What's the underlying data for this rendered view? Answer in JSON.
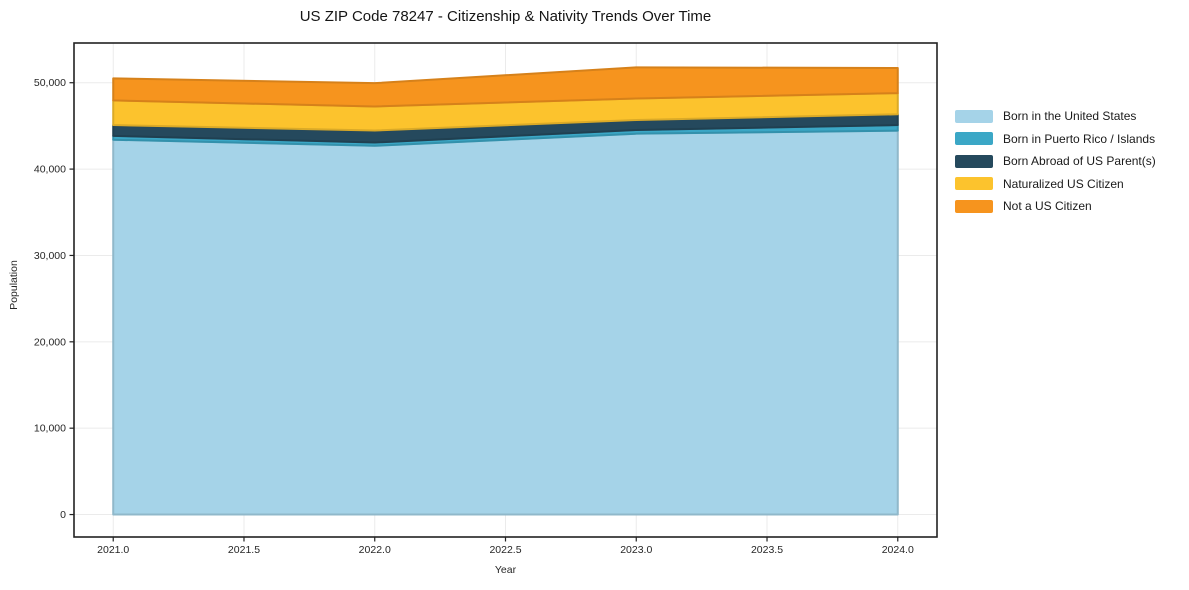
{
  "chart_data": {
    "type": "area",
    "stacked": true,
    "title": "US ZIP Code 78247 - Citizenship & Nativity Trends Over Time",
    "xlabel": "Year",
    "ylabel": "Population",
    "x": [
      2021,
      2022,
      2023,
      2024
    ],
    "series": [
      {
        "name": "Born in the United States",
        "color": "#a5d3e8",
        "values": [
          43400,
          42700,
          44100,
          44450
        ]
      },
      {
        "name": "Born in Puerto Rico / Islands",
        "color": "#3ba7c6",
        "values": [
          450,
          380,
          430,
          650
        ]
      },
      {
        "name": "Born Abroad of US Parent(s)",
        "color": "#25495d",
        "values": [
          1250,
          1390,
          1150,
          1250
        ]
      },
      {
        "name": "Naturalized US Citizen",
        "color": "#fcc32d",
        "values": [
          2850,
          2780,
          2500,
          2450
        ]
      },
      {
        "name": "Not a US Citizen",
        "color": "#f6941e",
        "values": [
          2550,
          2700,
          3600,
          2900
        ]
      }
    ],
    "xlim": [
      2020.85,
      2024.15
    ],
    "ylim": [
      -2600,
      54600
    ],
    "xticks": [
      2021.0,
      2021.5,
      2022.0,
      2022.5,
      2023.0,
      2023.5,
      2024.0
    ],
    "xtick_labels": [
      "2021.0",
      "2021.5",
      "2022.0",
      "2022.5",
      "2023.0",
      "2023.5",
      "2024.0"
    ],
    "yticks": [
      0,
      10000,
      20000,
      30000,
      40000,
      50000
    ],
    "ytick_labels": [
      "0",
      "10,000",
      "20,000",
      "30,000",
      "40,000",
      "50,000"
    ],
    "grid": true,
    "grid_color": "#ebebeb",
    "spine_color": "#222222",
    "legend_position": "right-outside"
  }
}
